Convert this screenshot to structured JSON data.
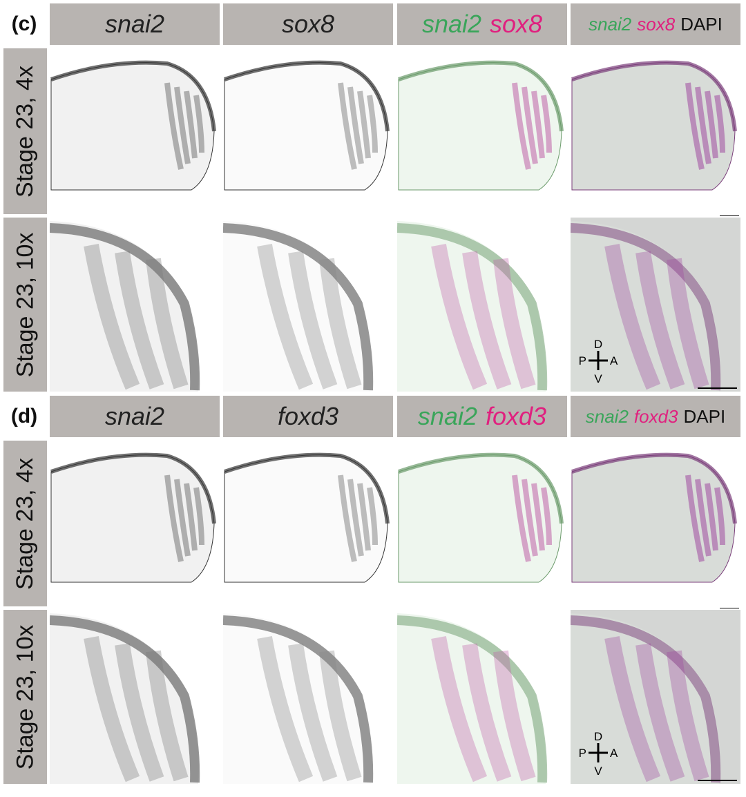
{
  "panels": [
    {
      "label": "(c)",
      "columns": [
        [
          {
            "text": "snai2",
            "color": "#222222"
          }
        ],
        [
          {
            "text": "sox8",
            "color": "#222222"
          }
        ],
        [
          {
            "text": "snai2",
            "color": "#3aa55a"
          },
          {
            "text": "sox8",
            "color": "#e0207f"
          }
        ],
        [
          {
            "text": "snai2",
            "color": "#3aa55a"
          },
          {
            "text": "sox8",
            "color": "#e0207f"
          },
          {
            "text": "DAPI",
            "color": "#111111"
          }
        ]
      ],
      "rows": [
        "Stage 23, 4x",
        "Stage 23, 10x"
      ],
      "orientation": {
        "dorsal": "D",
        "posterior": "P",
        "anterior": "A",
        "ventral": "V"
      }
    },
    {
      "label": "(d)",
      "columns": [
        [
          {
            "text": "snai2",
            "color": "#222222"
          }
        ],
        [
          {
            "text": "foxd3",
            "color": "#222222"
          }
        ],
        [
          {
            "text": "snai2",
            "color": "#3aa55a"
          },
          {
            "text": "foxd3",
            "color": "#e0207f"
          }
        ],
        [
          {
            "text": "snai2",
            "color": "#3aa55a"
          },
          {
            "text": "foxd3",
            "color": "#e0207f"
          },
          {
            "text": "DAPI",
            "color": "#111111"
          }
        ]
      ],
      "rows": [
        "Stage 23, 4x",
        "Stage 23, 10x"
      ],
      "orientation": {
        "dorsal": "D",
        "posterior": "P",
        "anterior": "A",
        "ventral": "V"
      }
    }
  ]
}
